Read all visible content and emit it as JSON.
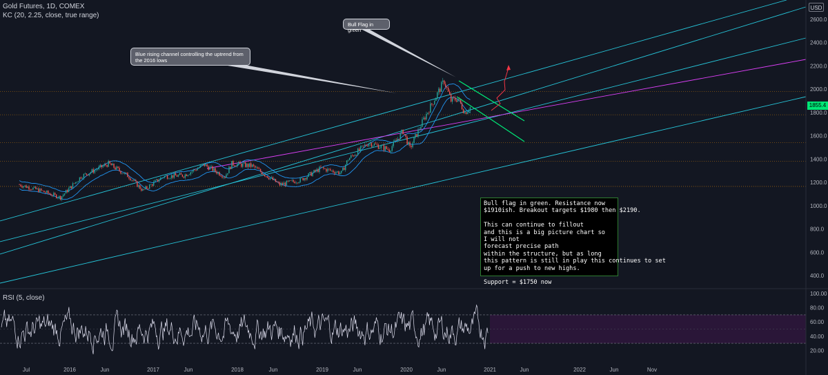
{
  "legend": {
    "title": "Gold Futures, 1D, COMEX",
    "indicator": "KC (20, 2.25, close, true range)",
    "rsi": "RSI (5, close)"
  },
  "currency": "USD",
  "last_price_label": "1855.4",
  "callouts": {
    "bull_flag": "Bull Flag in green",
    "channel": "Blue rising channel controlling the uptrend from the 2016 lows"
  },
  "note_lines": [
    "Bull flag in green. Resistance now",
    "$1910ish. Breakout targets $1980 then $2190.",
    "",
    "This can continue to fillout",
    "and this is a big picture chart so",
    "I will not",
    "forecast precise path",
    "within the structure, but as long",
    "this pattern is still in play this continues to set",
    "up for a push to new highs.",
    "",
    "Support =  $1750 now"
  ],
  "colors": {
    "background": "#131722",
    "candle_up": "#26a69a",
    "candle_down": "#ef5350",
    "keltner": "#2196f3",
    "channel": "#26c6da",
    "purple_line": "#e040fb",
    "flag": "#00e676",
    "projection": "#f23645",
    "rsi_line": "#e0e0f0",
    "rsi_band": "#2a1638",
    "horizontal_levels": "#ff9800"
  },
  "chart_data": [
    {
      "type": "line",
      "panel": "price",
      "x_tick_labels": [
        "Jul",
        "2016",
        "Jun",
        "2017",
        "Jun",
        "2018",
        "Jun",
        "2019",
        "Jun",
        "2020",
        "Jun",
        "2021",
        "Jun",
        "2022",
        "Jun",
        "Nov"
      ],
      "y_tick_labels": [
        "400.0",
        "600.0",
        "800.0",
        "1000.0",
        "1200.0",
        "1400.0",
        "1600.0",
        "1800.0",
        "2000.0",
        "2200.0",
        "2400.0",
        "2600.0"
      ],
      "ylim": [
        300,
        2750
      ],
      "x": [
        "2015-06",
        "2015-09",
        "2015-12",
        "2016-03",
        "2016-07",
        "2016-10",
        "2016-12",
        "2017-03",
        "2017-06",
        "2017-09",
        "2017-12",
        "2018-01",
        "2018-04",
        "2018-08",
        "2018-11",
        "2019-02",
        "2019-05",
        "2019-06",
        "2019-09",
        "2019-12",
        "2020-02",
        "2020-03",
        "2020-05",
        "2020-08",
        "2020-09",
        "2020-10",
        "2020-11",
        "2020-12"
      ],
      "series": [
        {
          "values": [
            1180,
            1130,
            1070,
            1250,
            1360,
            1250,
            1130,
            1250,
            1260,
            1350,
            1250,
            1360,
            1340,
            1180,
            1220,
            1320,
            1280,
            1400,
            1540,
            1480,
            1640,
            1490,
            1740,
            2070,
            1900,
            1920,
            1800,
            1855
          ]
        }
      ],
      "horizontal_levels": [
        1980,
        1780,
        1540,
        1380,
        1165
      ],
      "last_price": 1855.4
    },
    {
      "type": "line",
      "panel": "rsi",
      "ylim": [
        0,
        100
      ],
      "y_tick_labels": [
        "20.00",
        "40.00",
        "60.00",
        "80.00",
        "100.00"
      ],
      "band": [
        30,
        70
      ]
    }
  ]
}
